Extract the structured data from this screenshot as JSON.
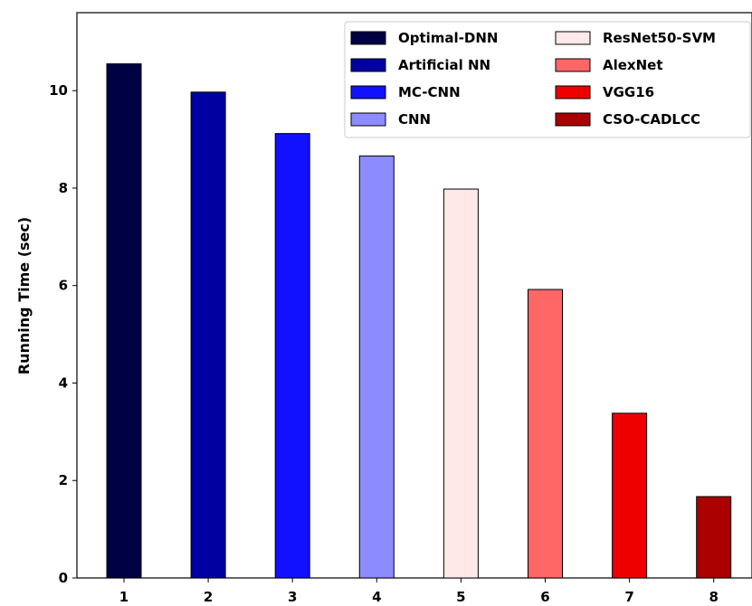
{
  "chart_data": {
    "type": "bar",
    "title": "",
    "xlabel": "",
    "ylabel": "Running Time (sec)",
    "categories": [
      "1",
      "2",
      "3",
      "4",
      "5",
      "6",
      "7",
      "8"
    ],
    "series": [
      {
        "name": "Optimal-DNN",
        "category": "1",
        "value": 10.55,
        "color": "#000044"
      },
      {
        "name": "Artificial NN",
        "category": "2",
        "value": 9.97,
        "color": "#0000a0"
      },
      {
        "name": "MC-CNN",
        "category": "3",
        "value": 9.12,
        "color": "#1111ff"
      },
      {
        "name": "CNN",
        "category": "4",
        "value": 8.66,
        "color": "#8c8cff"
      },
      {
        "name": "ResNet50-SVM",
        "category": "5",
        "value": 7.98,
        "color": "#ffe8e8"
      },
      {
        "name": "AlexNet",
        "category": "6",
        "value": 5.92,
        "color": "#ff6666"
      },
      {
        "name": "VGG16",
        "category": "7",
        "value": 3.38,
        "color": "#ee0000"
      },
      {
        "name": "CSO-CADLCC",
        "category": "8",
        "value": 1.67,
        "color": "#aa0000"
      }
    ],
    "yticks": [
      "0",
      "2",
      "4",
      "6",
      "8",
      "10"
    ],
    "ylim": [
      0,
      11.6
    ],
    "grid": false,
    "legend_position": "top-right",
    "legend_columns": 2
  }
}
